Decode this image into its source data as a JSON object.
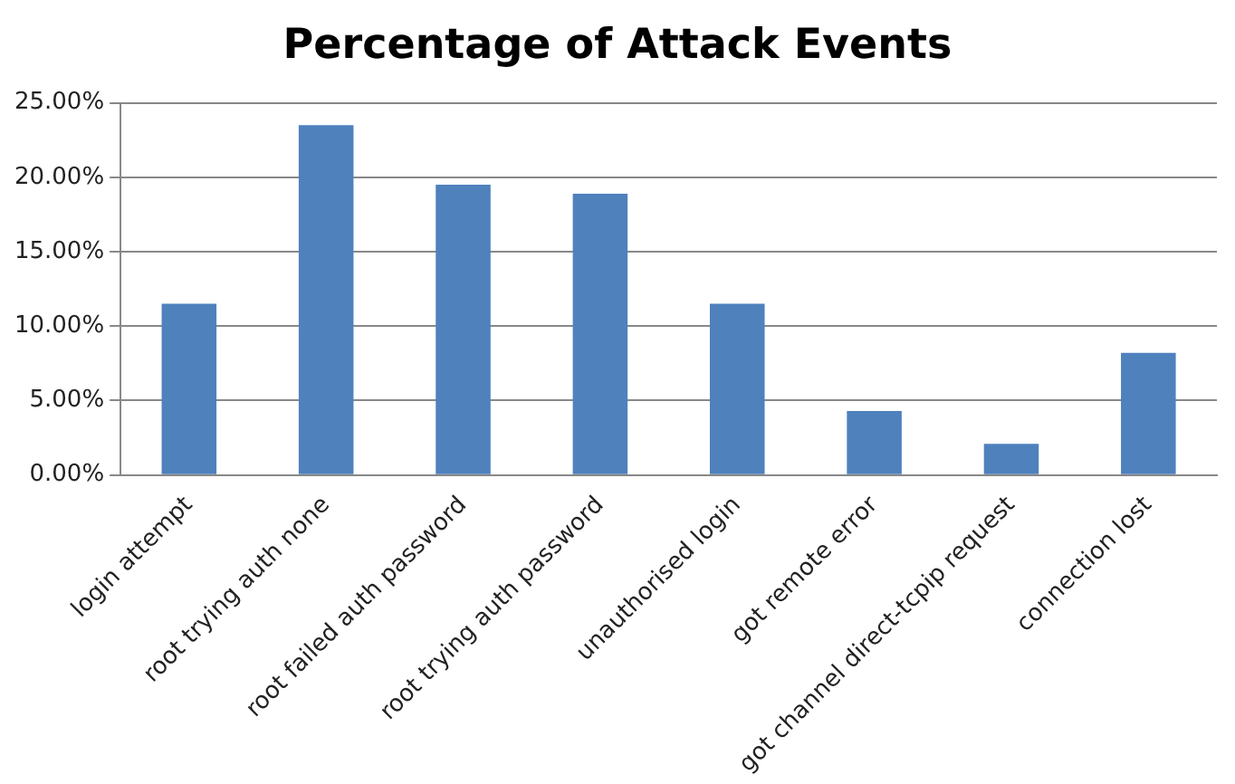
{
  "chart_data": {
    "type": "bar",
    "title": "Percentage of Attack Events",
    "categories": [
      "login attempt",
      "root trying auth none",
      "root failed auth password",
      "root trying auth password",
      "unauthorised login",
      "got remote error",
      "got channel direct-tcpip request",
      "connection lost"
    ],
    "values": [
      11.5,
      23.5,
      19.5,
      18.9,
      11.5,
      4.3,
      2.1,
      8.2
    ],
    "color": "#4f81bd",
    "ylim": [
      0,
      25
    ],
    "yticks": [
      {
        "value": 0,
        "label": "0.00%"
      },
      {
        "value": 5,
        "label": "5.00%"
      },
      {
        "value": 10,
        "label": "10.00%"
      },
      {
        "value": 15,
        "label": "15.00%"
      },
      {
        "value": 20,
        "label": "20.00%"
      },
      {
        "value": 25,
        "label": "25.00%"
      }
    ],
    "grid": "y",
    "legend": false
  }
}
